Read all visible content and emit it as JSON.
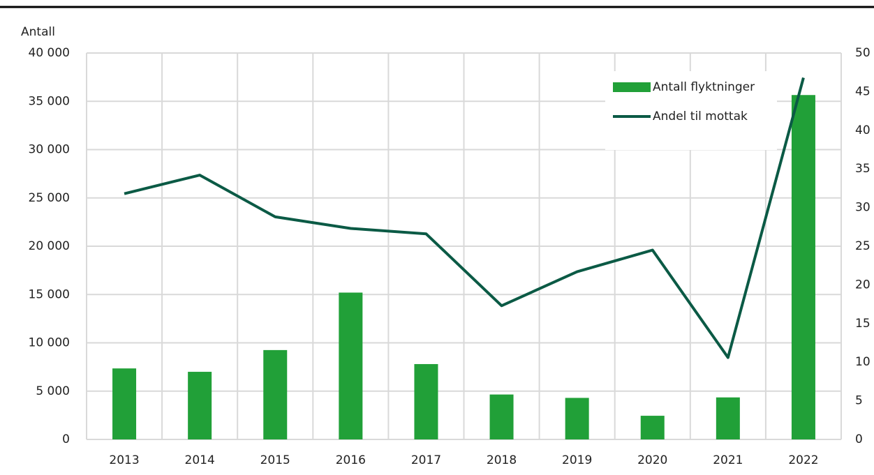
{
  "chart_data": {
    "type": "bar_line",
    "y_label": "Antall",
    "categories": [
      "2013",
      "2014",
      "2015",
      "2016",
      "2017",
      "2018",
      "2019",
      "2020",
      "2021",
      "2022"
    ],
    "series": [
      {
        "name": "Antall flyktninger",
        "color": "#21a038",
        "type": "bar",
        "values": [
          7350,
          7000,
          9250,
          15200,
          7800,
          4650,
          4300,
          2450,
          4350,
          35650
        ]
      },
      {
        "name": "Andel til mottak",
        "color": "#0b5a45",
        "type": "line",
        "axis": "y2",
        "values": [
          31.8,
          34.2,
          28.8,
          27.3,
          26.6,
          17.3,
          21.7,
          24.5,
          10.6,
          46.8
        ]
      }
    ],
    "ylim": [
      0,
      40000
    ],
    "yticks": [
      0,
      {
        "value": 5000,
        "label": "5 000"
      },
      {
        "value": 10000,
        "label": "10 000"
      },
      {
        "value": 15000,
        "label": "15 000"
      },
      {
        "value": 20000,
        "label": "20 000"
      },
      {
        "value": 25000,
        "label": "25 000"
      },
      {
        "value": 30000,
        "label": "30 000"
      },
      {
        "value": 35000,
        "label": "35 000"
      },
      {
        "value": 40000,
        "label": "40 000"
      }
    ],
    "y2lim": [
      0,
      50
    ],
    "y2ticks": [
      0,
      5,
      10,
      15,
      20,
      25,
      30,
      35,
      40,
      45,
      50
    ],
    "grid": true,
    "legend": "top-right"
  }
}
